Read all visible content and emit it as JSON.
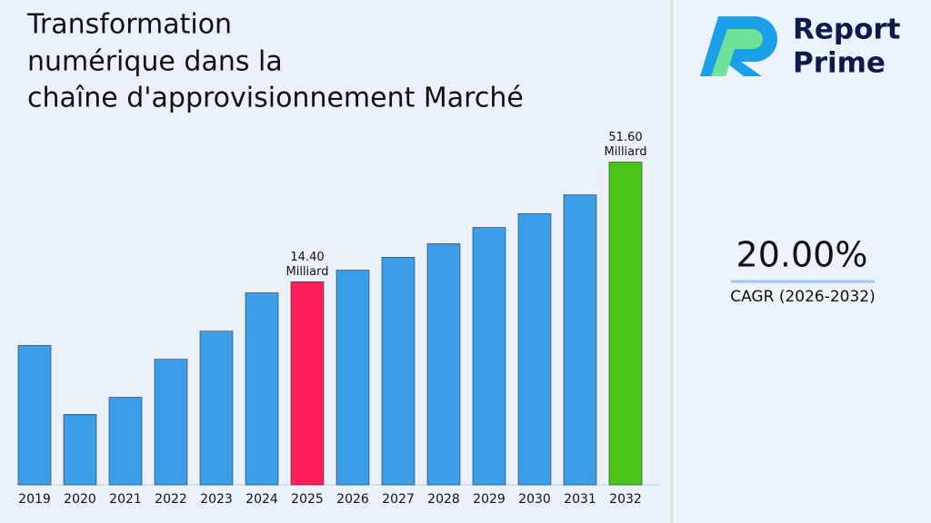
{
  "chart_data": {
    "type": "bar",
    "title": [
      "Transformation",
      "numérique dans la",
      "chaîne d'approvisionnement Marché"
    ],
    "categories": [
      "2019",
      "2020",
      "2021",
      "2022",
      "2023",
      "2024",
      "2025",
      "2026",
      "2027",
      "2028",
      "2029",
      "2030",
      "2031",
      "2032"
    ],
    "values": [
      7.3,
      3.5,
      4.2,
      6.3,
      8.5,
      12.8,
      14.4,
      16.3,
      18.7,
      21.6,
      25.7,
      29.8,
      36.4,
      51.6
    ],
    "value_labels": [
      null,
      null,
      null,
      null,
      null,
      null,
      [
        "14.40",
        "Milliard"
      ],
      null,
      null,
      null,
      null,
      null,
      null,
      [
        "51.60",
        "Milliard"
      ]
    ],
    "colors": [
      "#3a9fe8",
      "#3a9fe8",
      "#3a9fe8",
      "#3a9fe8",
      "#3a9fe8",
      "#3a9fe8",
      "#ff1f5b",
      "#3a9fe8",
      "#3a9fe8",
      "#3a9fe8",
      "#3a9fe8",
      "#3a9fe8",
      "#3a9fe8",
      "#4cc417"
    ],
    "ylim": [
      1.65,
      68
    ],
    "log_scale": true,
    "cagr_value": "20.00%",
    "cagr_label": "CAGR (2026-2032)",
    "brand": [
      "Report",
      "Prime"
    ]
  }
}
